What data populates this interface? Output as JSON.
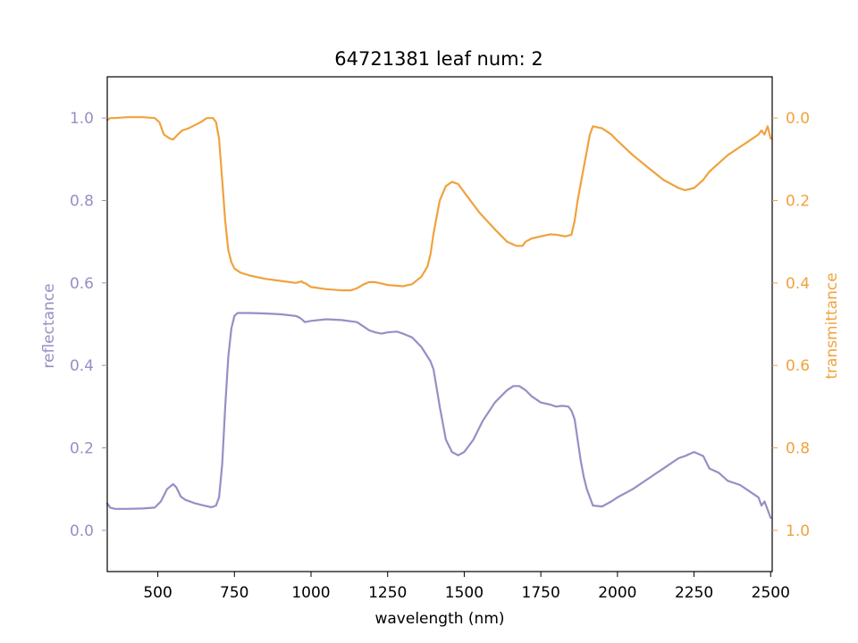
{
  "colors": {
    "reflectance": "#9490c5",
    "transmittance": "#f0a23e",
    "axis": "#000000"
  },
  "chart_data": {
    "type": "line",
    "title": "64721381 leaf num: 2",
    "xlabel": "wavelength (nm)",
    "ylabel_left": "reflectance",
    "ylabel_right": "transmittance",
    "xlim": [
      335,
      2505
    ],
    "ylim_left": [
      -0.1,
      1.1
    ],
    "ylim_right_inverted": [
      1.1,
      -0.1
    ],
    "xticks": [
      500,
      750,
      1000,
      1250,
      1500,
      1750,
      2000,
      2250,
      2500
    ],
    "xtick_labels": [
      "500",
      "750",
      "1000",
      "1250",
      "1500",
      "1750",
      "2000",
      "2250",
      "2500"
    ],
    "yticks_left": [
      0.0,
      0.2,
      0.4,
      0.6,
      0.8,
      1.0
    ],
    "yticks_left_labels": [
      "0.0",
      "0.2",
      "0.4",
      "0.6",
      "0.8",
      "1.0"
    ],
    "yticks_right": [
      0.0,
      0.2,
      0.4,
      0.6,
      0.8,
      1.0
    ],
    "yticks_right_labels": [
      "0.0",
      "0.2",
      "0.4",
      "0.6",
      "0.8",
      "1.0"
    ],
    "grid": false,
    "series": [
      {
        "key": "reflectance",
        "axis": "left",
        "x": [
          335,
          345,
          360,
          400,
          450,
          490,
          510,
          530,
          550,
          560,
          575,
          590,
          620,
          650,
          675,
          690,
          700,
          710,
          720,
          730,
          740,
          750,
          760,
          800,
          850,
          900,
          950,
          960,
          970,
          980,
          1000,
          1050,
          1100,
          1150,
          1170,
          1190,
          1210,
          1230,
          1250,
          1280,
          1300,
          1330,
          1360,
          1390,
          1400,
          1420,
          1440,
          1460,
          1480,
          1500,
          1530,
          1560,
          1600,
          1640,
          1660,
          1680,
          1700,
          1720,
          1750,
          1780,
          1800,
          1820,
          1840,
          1850,
          1860,
          1870,
          1880,
          1890,
          1900,
          1910,
          1920,
          1950,
          1980,
          2000,
          2050,
          2100,
          2150,
          2200,
          2220,
          2250,
          2280,
          2300,
          2330,
          2360,
          2400,
          2420,
          2440,
          2460,
          2470,
          2480,
          2490,
          2500
        ],
        "y": [
          0.065,
          0.055,
          0.052,
          0.052,
          0.053,
          0.055,
          0.07,
          0.1,
          0.112,
          0.105,
          0.082,
          0.074,
          0.066,
          0.06,
          0.056,
          0.06,
          0.08,
          0.16,
          0.3,
          0.42,
          0.49,
          0.52,
          0.527,
          0.527,
          0.526,
          0.524,
          0.52,
          0.517,
          0.512,
          0.505,
          0.508,
          0.512,
          0.51,
          0.505,
          0.495,
          0.485,
          0.48,
          0.477,
          0.48,
          0.482,
          0.477,
          0.468,
          0.445,
          0.41,
          0.39,
          0.3,
          0.22,
          0.19,
          0.182,
          0.19,
          0.22,
          0.265,
          0.31,
          0.34,
          0.35,
          0.35,
          0.34,
          0.325,
          0.31,
          0.305,
          0.3,
          0.302,
          0.3,
          0.29,
          0.27,
          0.22,
          0.17,
          0.13,
          0.1,
          0.08,
          0.06,
          0.058,
          0.07,
          0.08,
          0.1,
          0.125,
          0.15,
          0.175,
          0.18,
          0.19,
          0.18,
          0.15,
          0.14,
          0.12,
          0.11,
          0.1,
          0.09,
          0.08,
          0.06,
          0.07,
          0.05,
          0.03
        ]
      },
      {
        "key": "transmittance",
        "axis": "right",
        "x": [
          335,
          345,
          360,
          400,
          450,
          490,
          505,
          520,
          540,
          550,
          565,
          580,
          600,
          640,
          660,
          680,
          690,
          700,
          710,
          720,
          730,
          740,
          750,
          770,
          800,
          850,
          900,
          950,
          970,
          975,
          980,
          1000,
          1050,
          1100,
          1130,
          1150,
          1170,
          1190,
          1210,
          1250,
          1300,
          1330,
          1360,
          1380,
          1390,
          1400,
          1420,
          1440,
          1460,
          1480,
          1500,
          1550,
          1600,
          1640,
          1670,
          1690,
          1700,
          1720,
          1750,
          1780,
          1800,
          1830,
          1850,
          1860,
          1870,
          1880,
          1890,
          1900,
          1910,
          1920,
          1950,
          1980,
          2000,
          2050,
          2100,
          2150,
          2200,
          2220,
          2250,
          2280,
          2300,
          2330,
          2360,
          2400,
          2420,
          2440,
          2460,
          2470,
          2480,
          2490,
          2500
        ],
        "y": [
          0.005,
          0.0,
          0.0,
          -0.002,
          -0.002,
          0.0,
          0.01,
          0.04,
          0.05,
          0.052,
          0.04,
          0.03,
          0.025,
          0.01,
          0.0,
          0.0,
          0.01,
          0.05,
          0.15,
          0.25,
          0.32,
          0.35,
          0.365,
          0.375,
          0.382,
          0.39,
          0.395,
          0.4,
          0.396,
          0.4,
          0.4,
          0.41,
          0.415,
          0.418,
          0.418,
          0.413,
          0.404,
          0.398,
          0.398,
          0.405,
          0.408,
          0.403,
          0.385,
          0.36,
          0.33,
          0.28,
          0.2,
          0.165,
          0.155,
          0.16,
          0.18,
          0.23,
          0.27,
          0.3,
          0.31,
          0.31,
          0.3,
          0.292,
          0.287,
          0.282,
          0.283,
          0.287,
          0.283,
          0.25,
          0.2,
          0.16,
          0.12,
          0.08,
          0.04,
          0.02,
          0.025,
          0.04,
          0.055,
          0.09,
          0.12,
          0.15,
          0.17,
          0.175,
          0.17,
          0.15,
          0.13,
          0.11,
          0.09,
          0.07,
          0.06,
          0.05,
          0.04,
          0.03,
          0.04,
          0.02,
          0.05
        ]
      }
    ]
  }
}
